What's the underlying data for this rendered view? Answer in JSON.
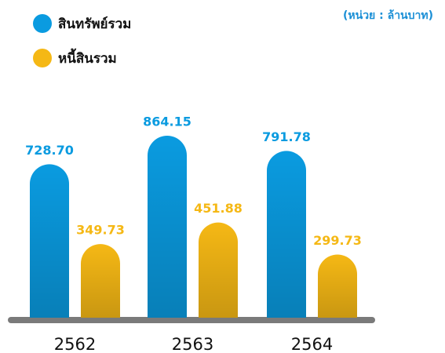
{
  "chart_data": {
    "type": "bar",
    "subtitle": "(หน่วย : ล้านบาท)",
    "categories": [
      "2562",
      "2563",
      "2564"
    ],
    "series": [
      {
        "name": "สินทรัพย์รวม",
        "color": "#0a9be0",
        "values": [
          728.7,
          864.15,
          791.78
        ],
        "value_labels": [
          "728.70",
          "864.15",
          "791.78"
        ]
      },
      {
        "name": "หนี้สินรวม",
        "color": "#f5b815",
        "values": [
          349.73,
          451.88,
          299.73
        ],
        "value_labels": [
          "349.73",
          "451.88",
          "299.73"
        ]
      }
    ]
  }
}
